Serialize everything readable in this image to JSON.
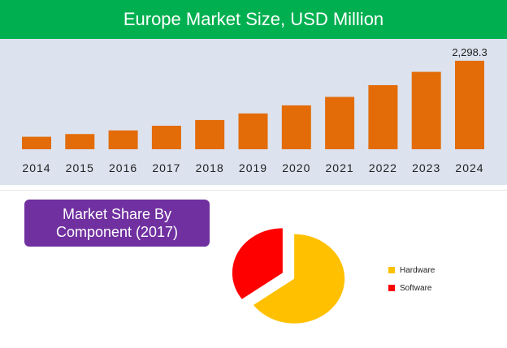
{
  "header": {
    "title": "Europe Market Size, USD Million"
  },
  "share": {
    "title": "Market Share By Component (2017)"
  },
  "colors": {
    "bar": "#e36c09",
    "title_bg": "#00b050",
    "share_bg": "#7030a0",
    "hardware": "#ffc000",
    "software": "#ff0000"
  },
  "chart_data": [
    {
      "type": "bar",
      "title": "Europe Market Size, USD Million",
      "categories": [
        "2014",
        "2015",
        "2016",
        "2017",
        "2018",
        "2019",
        "2020",
        "2021",
        "2022",
        "2023",
        "2024"
      ],
      "values": [
        325,
        395,
        490,
        610,
        760,
        930,
        1140,
        1360,
        1665,
        2010,
        2298.3
      ],
      "data_labels": [
        null,
        null,
        null,
        null,
        null,
        null,
        null,
        null,
        null,
        null,
        "2,298.3"
      ],
      "ylim": [
        0,
        2400
      ],
      "grid": false
    },
    {
      "type": "pie",
      "title": "Market Share By Component (2017)",
      "categories": [
        "Hardware",
        "Software"
      ],
      "values": [
        65,
        35
      ],
      "legend_position": "right"
    }
  ]
}
